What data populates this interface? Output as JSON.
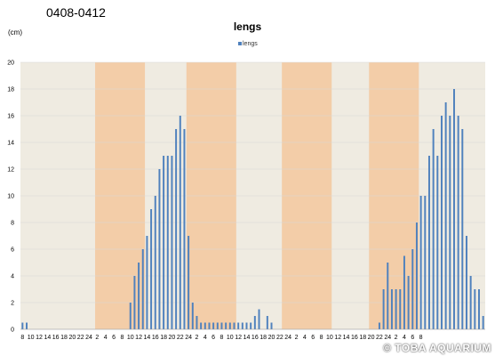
{
  "header": {
    "label": "0408-0412",
    "unit": "(cm)",
    "watermark": "© TOBA AQUARIUM"
  },
  "colors": {
    "bar": "#4f81bd",
    "plot_background": "#efebe1",
    "night_band": "#f3cda8",
    "grid": "#d8d8d8",
    "axis_text": "#000000"
  },
  "chart_data": {
    "type": "bar",
    "title": "lengs",
    "legend": {
      "position": "top",
      "entries": [
        "lengs"
      ]
    },
    "xlabel": "",
    "ylabel": "",
    "ylim": [
      0,
      20
    ],
    "yticks": [
      0,
      2,
      4,
      6,
      8,
      10,
      12,
      14,
      16,
      18,
      20
    ],
    "grid": true,
    "x_tick_labels": [
      "8",
      "10",
      "12",
      "14",
      "16",
      "18",
      "20",
      "22",
      "24",
      "2",
      "4",
      "6",
      "8",
      "10",
      "12",
      "14",
      "16",
      "18",
      "20",
      "22",
      "24",
      "2",
      "4",
      "6",
      "8",
      "10",
      "12",
      "14",
      "16",
      "18",
      "20",
      "22",
      "24",
      "2",
      "4",
      "6",
      "8",
      "10",
      "12",
      "14",
      "16",
      "18",
      "20",
      "22",
      "24",
      "2",
      "4",
      "6",
      "8"
    ],
    "night_bands": [
      [
        18,
        30
      ],
      [
        40,
        52
      ],
      [
        63,
        75
      ],
      [
        84,
        96
      ]
    ],
    "series": [
      {
        "name": "lengs",
        "values": [
          0.5,
          0.5,
          0,
          0,
          0,
          0,
          0,
          0,
          0,
          0,
          0,
          0,
          0,
          0,
          0,
          0,
          0,
          0,
          0,
          0,
          0,
          0,
          0,
          0,
          0,
          0,
          2,
          4,
          5,
          6,
          7,
          9,
          10,
          12,
          13,
          13,
          13,
          15,
          16,
          15,
          7,
          2,
          1,
          0.5,
          0.5,
          0.5,
          0.5,
          0.5,
          0.5,
          0.5,
          0.5,
          0.5,
          0.5,
          0.5,
          0.5,
          0.5,
          1,
          1.5,
          0,
          1,
          0.5,
          0,
          0,
          0,
          0,
          0,
          0,
          0,
          0,
          0,
          0,
          0,
          0,
          0,
          0,
          0,
          0,
          0,
          0,
          0,
          0,
          0,
          0,
          0,
          0,
          0,
          0.5,
          3,
          5,
          3,
          3,
          3,
          5.5,
          4,
          6,
          8,
          10,
          10,
          13,
          15,
          13,
          16,
          17,
          16,
          18,
          16,
          15,
          7,
          4,
          3,
          3,
          1
        ]
      }
    ]
  }
}
